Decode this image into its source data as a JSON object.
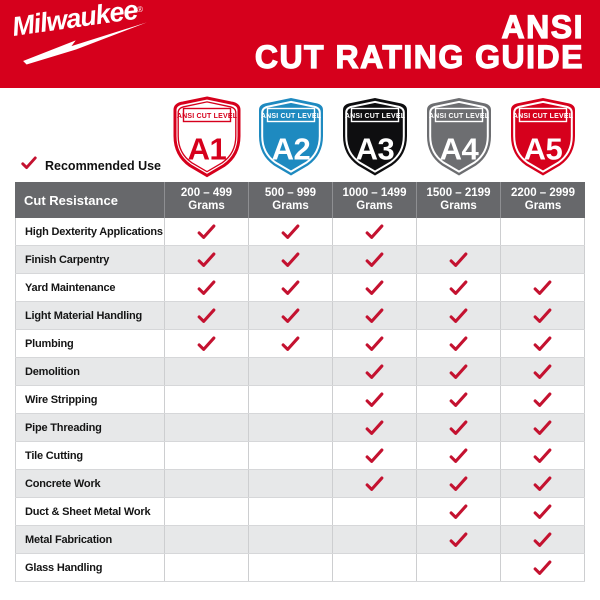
{
  "banner": {
    "logo_text": "Milwaukee",
    "registered_mark": "®",
    "title_line1": "ANSI",
    "title_line2": "CUT RATING GUIDE"
  },
  "colors": {
    "milwaukee_red": "#d6001c",
    "check_red": "#c41230",
    "header_gray": "#67686b",
    "alt_row_gray": "#e7e8e9",
    "table_border": "#cdced0",
    "a2_blue": "#1e8ac0",
    "a3_black": "#0e0e10",
    "a4_gray": "#6d6e71"
  },
  "legend": {
    "check_symbol": "✓",
    "label": "Recommended Use"
  },
  "shields": [
    {
      "level": "A1",
      "sub_label": "ANSI CUT LEVEL",
      "fill": "#ffffff",
      "accent": "#d6001c",
      "outlined": true
    },
    {
      "level": "A2",
      "sub_label": "ANSI CUT LEVEL",
      "fill": "#1e8ac0",
      "accent": "#ffffff",
      "outlined": false
    },
    {
      "level": "A3",
      "sub_label": "ANSI CUT LEVEL",
      "fill": "#0e0e10",
      "accent": "#ffffff",
      "outlined": false
    },
    {
      "level": "A4",
      "sub_label": "ANSI CUT LEVEL",
      "fill": "#6d6e71",
      "accent": "#ffffff",
      "outlined": false
    },
    {
      "level": "A5",
      "sub_label": "ANSI CUT LEVEL",
      "fill": "#d6001c",
      "accent": "#ffffff",
      "outlined": false
    }
  ],
  "table": {
    "corner_label": "Cut Resistance",
    "columns": [
      {
        "range": "200 – 499",
        "unit": "Grams"
      },
      {
        "range": "500 – 999",
        "unit": "Grams"
      },
      {
        "range": "1000 – 1499",
        "unit": "Grams"
      },
      {
        "range": "1500 – 2199",
        "unit": "Grams"
      },
      {
        "range": "2200 – 2999",
        "unit": "Grams"
      }
    ],
    "rows": [
      {
        "label": "High Dexterity Applications",
        "checks": [
          true,
          true,
          true,
          false,
          false
        ]
      },
      {
        "label": "Finish Carpentry",
        "checks": [
          true,
          true,
          true,
          true,
          false
        ]
      },
      {
        "label": "Yard Maintenance",
        "checks": [
          true,
          true,
          true,
          true,
          true
        ]
      },
      {
        "label": "Light Material Handling",
        "checks": [
          true,
          true,
          true,
          true,
          true
        ]
      },
      {
        "label": "Plumbing",
        "checks": [
          true,
          true,
          true,
          true,
          true
        ]
      },
      {
        "label": "Demolition",
        "checks": [
          false,
          false,
          true,
          true,
          true
        ]
      },
      {
        "label": "Wire Stripping",
        "checks": [
          false,
          false,
          true,
          true,
          true
        ]
      },
      {
        "label": "Pipe Threading",
        "checks": [
          false,
          false,
          true,
          true,
          true
        ]
      },
      {
        "label": "Tile Cutting",
        "checks": [
          false,
          false,
          true,
          true,
          true
        ]
      },
      {
        "label": "Concrete Work",
        "checks": [
          false,
          false,
          true,
          true,
          true
        ]
      },
      {
        "label": "Duct & Sheet Metal Work",
        "checks": [
          false,
          false,
          false,
          true,
          true
        ]
      },
      {
        "label": "Metal Fabrication",
        "checks": [
          false,
          false,
          false,
          true,
          true
        ]
      },
      {
        "label": "Glass Handling",
        "checks": [
          false,
          false,
          false,
          false,
          true
        ]
      }
    ]
  }
}
